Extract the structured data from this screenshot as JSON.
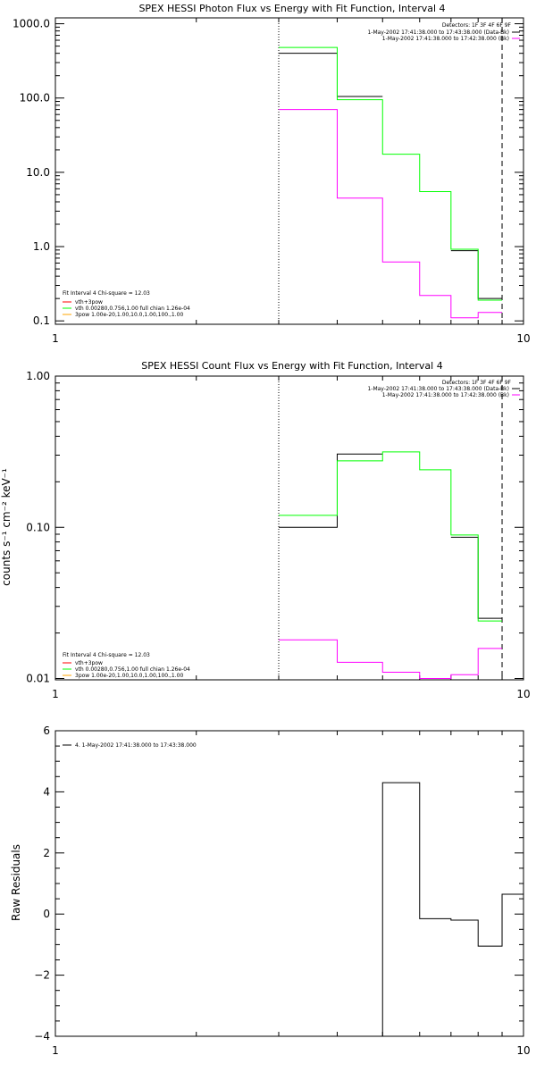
{
  "chart_data": [
    {
      "type": "line",
      "step": true,
      "title": "SPEX HESSI Photon Flux vs Energy with Fit Function, Interval 4",
      "xlabel": "",
      "ylabel": "",
      "xscale": "log",
      "yscale": "log",
      "xlim": [
        1,
        10
      ],
      "ylim": [
        0.09,
        1200
      ],
      "x_tick_labels": [
        "1",
        "10"
      ],
      "y_ticks": [
        0.1,
        1,
        10,
        100,
        1000
      ],
      "y_tick_labels": [
        "0.1",
        "1.0",
        "10.0",
        "100.0",
        "1000.0"
      ],
      "grid": false,
      "bin_edges": [
        3.0,
        4.0,
        5.0,
        6.0,
        7.0,
        8.0,
        9.0
      ],
      "series": [
        {
          "name": "1-May-2002 17:41:38.000 to 17:43:38.000 (Data-Bk)",
          "color": "#000000",
          "values": [
            400,
            105,
            null,
            null,
            0.88,
            0.2
          ]
        },
        {
          "name": "1-May-2002 17:41:38.000 to 17:42:38.000 (Bk)",
          "color": "#ff00ff",
          "values": [
            70,
            4.5,
            0.62,
            0.22,
            0.11,
            0.13
          ]
        },
        {
          "name": "vth 0.00280,0.756,1.00 full chian 1.26e-04",
          "color": "#00ff00",
          "values": [
            480,
            95,
            17.5,
            5.5,
            0.92,
            0.19
          ]
        }
      ],
      "detectors_label": "Detectors: 1F 3F 4F 6F 9F",
      "legend_top_right": [
        {
          "text": "1-May-2002 17:41:38.000 to 17:43:38.000 (Data-Bk)",
          "color": "#000000"
        },
        {
          "text": "1-May-2002 17:41:38.000 to 17:42:38.000 (Bk)",
          "color": "#ff00ff"
        }
      ],
      "legend_bottom_left": {
        "header": "Fit Interval 4   Chi-square = 12.03",
        "items": [
          {
            "text": "vth+3pow",
            "color": "#ff0000"
          },
          {
            "text": "vth 0.00280,0.756,1.00  full chian 1.26e-04",
            "color": "#00ff00"
          },
          {
            "text": "3pow 1.00e-20,1.00,10.0,1.00,100.,1.00",
            "color": "#ffa500"
          }
        ]
      },
      "vlines": [
        {
          "x": 3.0,
          "style": "dotted",
          "color": "#000000"
        },
        {
          "x": 9.0,
          "style": "dashed",
          "color": "#000000"
        }
      ]
    },
    {
      "type": "line",
      "step": true,
      "title": "SPEX HESSI Count Flux vs Energy with Fit Function, Interval 4",
      "xlabel": "",
      "ylabel": "counts s⁻¹ cm⁻² keV⁻¹",
      "xscale": "log",
      "yscale": "log",
      "xlim": [
        1,
        10
      ],
      "ylim": [
        0.0098,
        1.0
      ],
      "x_tick_labels": [
        "1",
        "10"
      ],
      "y_ticks": [
        0.01,
        0.1,
        1.0
      ],
      "y_tick_labels": [
        "0.01",
        "0.10",
        "1.00"
      ],
      "grid": false,
      "bin_edges": [
        3.0,
        4.0,
        5.0,
        6.0,
        7.0,
        8.0,
        9.0
      ],
      "series": [
        {
          "name": "1-May-2002 17:41:38.000 to 17:43:38.000 (Data-Bk)",
          "color": "#000000",
          "values": [
            0.1,
            0.305,
            null,
            null,
            0.086,
            0.025
          ]
        },
        {
          "name": "1-May-2002 17:41:38.000 to 17:42:38.000 (Bk)",
          "color": "#ff00ff",
          "values": [
            0.018,
            0.0128,
            0.011,
            0.01,
            0.0106,
            0.0158
          ]
        },
        {
          "name": "vth 0.00280,0.756,1.00 full chian 1.26e-04",
          "color": "#00ff00",
          "values": [
            0.12,
            0.275,
            0.315,
            0.24,
            0.089,
            0.024
          ]
        }
      ],
      "detectors_label": "Detectors: 1F 3F 4F 6F 9F",
      "legend_top_right": [
        {
          "text": "1-May-2002 17:41:38.000 to 17:43:38.000 (Data-Bk)",
          "color": "#000000"
        },
        {
          "text": "1-May-2002 17:41:38.000 to 17:42:38.000 (Bk)",
          "color": "#ff00ff"
        }
      ],
      "legend_bottom_left": {
        "header": "Fit Interval 4   Chi-square = 12.03",
        "items": [
          {
            "text": "vth+3pow",
            "color": "#ff0000"
          },
          {
            "text": "vth 0.00280,0.756,1.00  full chian 1.26e-04",
            "color": "#00ff00"
          },
          {
            "text": "3pow 1.00e-20,1.00,10.0,1.00,100.,1.00",
            "color": "#ffa500"
          }
        ]
      },
      "vlines": [
        {
          "x": 3.0,
          "style": "dotted",
          "color": "#000000"
        },
        {
          "x": 9.0,
          "style": "dashed",
          "color": "#000000"
        }
      ]
    },
    {
      "type": "line",
      "step": true,
      "title": "",
      "xlabel": "",
      "ylabel": "Raw Residuals",
      "xscale": "log",
      "yscale": "linear",
      "xlim": [
        1,
        10
      ],
      "ylim": [
        -4,
        6
      ],
      "x_tick_labels": [
        "1",
        "10"
      ],
      "y_ticks": [
        -4,
        -2,
        0,
        2,
        4,
        6
      ],
      "y_tick_labels": [
        "−4",
        "−2",
        "0",
        "2",
        "4",
        "6"
      ],
      "grid": false,
      "bin_edges": [
        5.0,
        6.0,
        7.0,
        8.0,
        9.0,
        10.0
      ],
      "series": [
        {
          "name": "4. 1-May-2002 17:41:38.000 to 17:43:38.000",
          "color": "#000000",
          "values": [
            4.3,
            -0.15,
            -0.2,
            -1.05,
            0.65
          ]
        }
      ],
      "legend_top_left": [
        {
          "text": "4. 1-May-2002 17:41:38.000 to 17:43:38.000",
          "color": "#000000"
        }
      ],
      "vlines": []
    }
  ]
}
